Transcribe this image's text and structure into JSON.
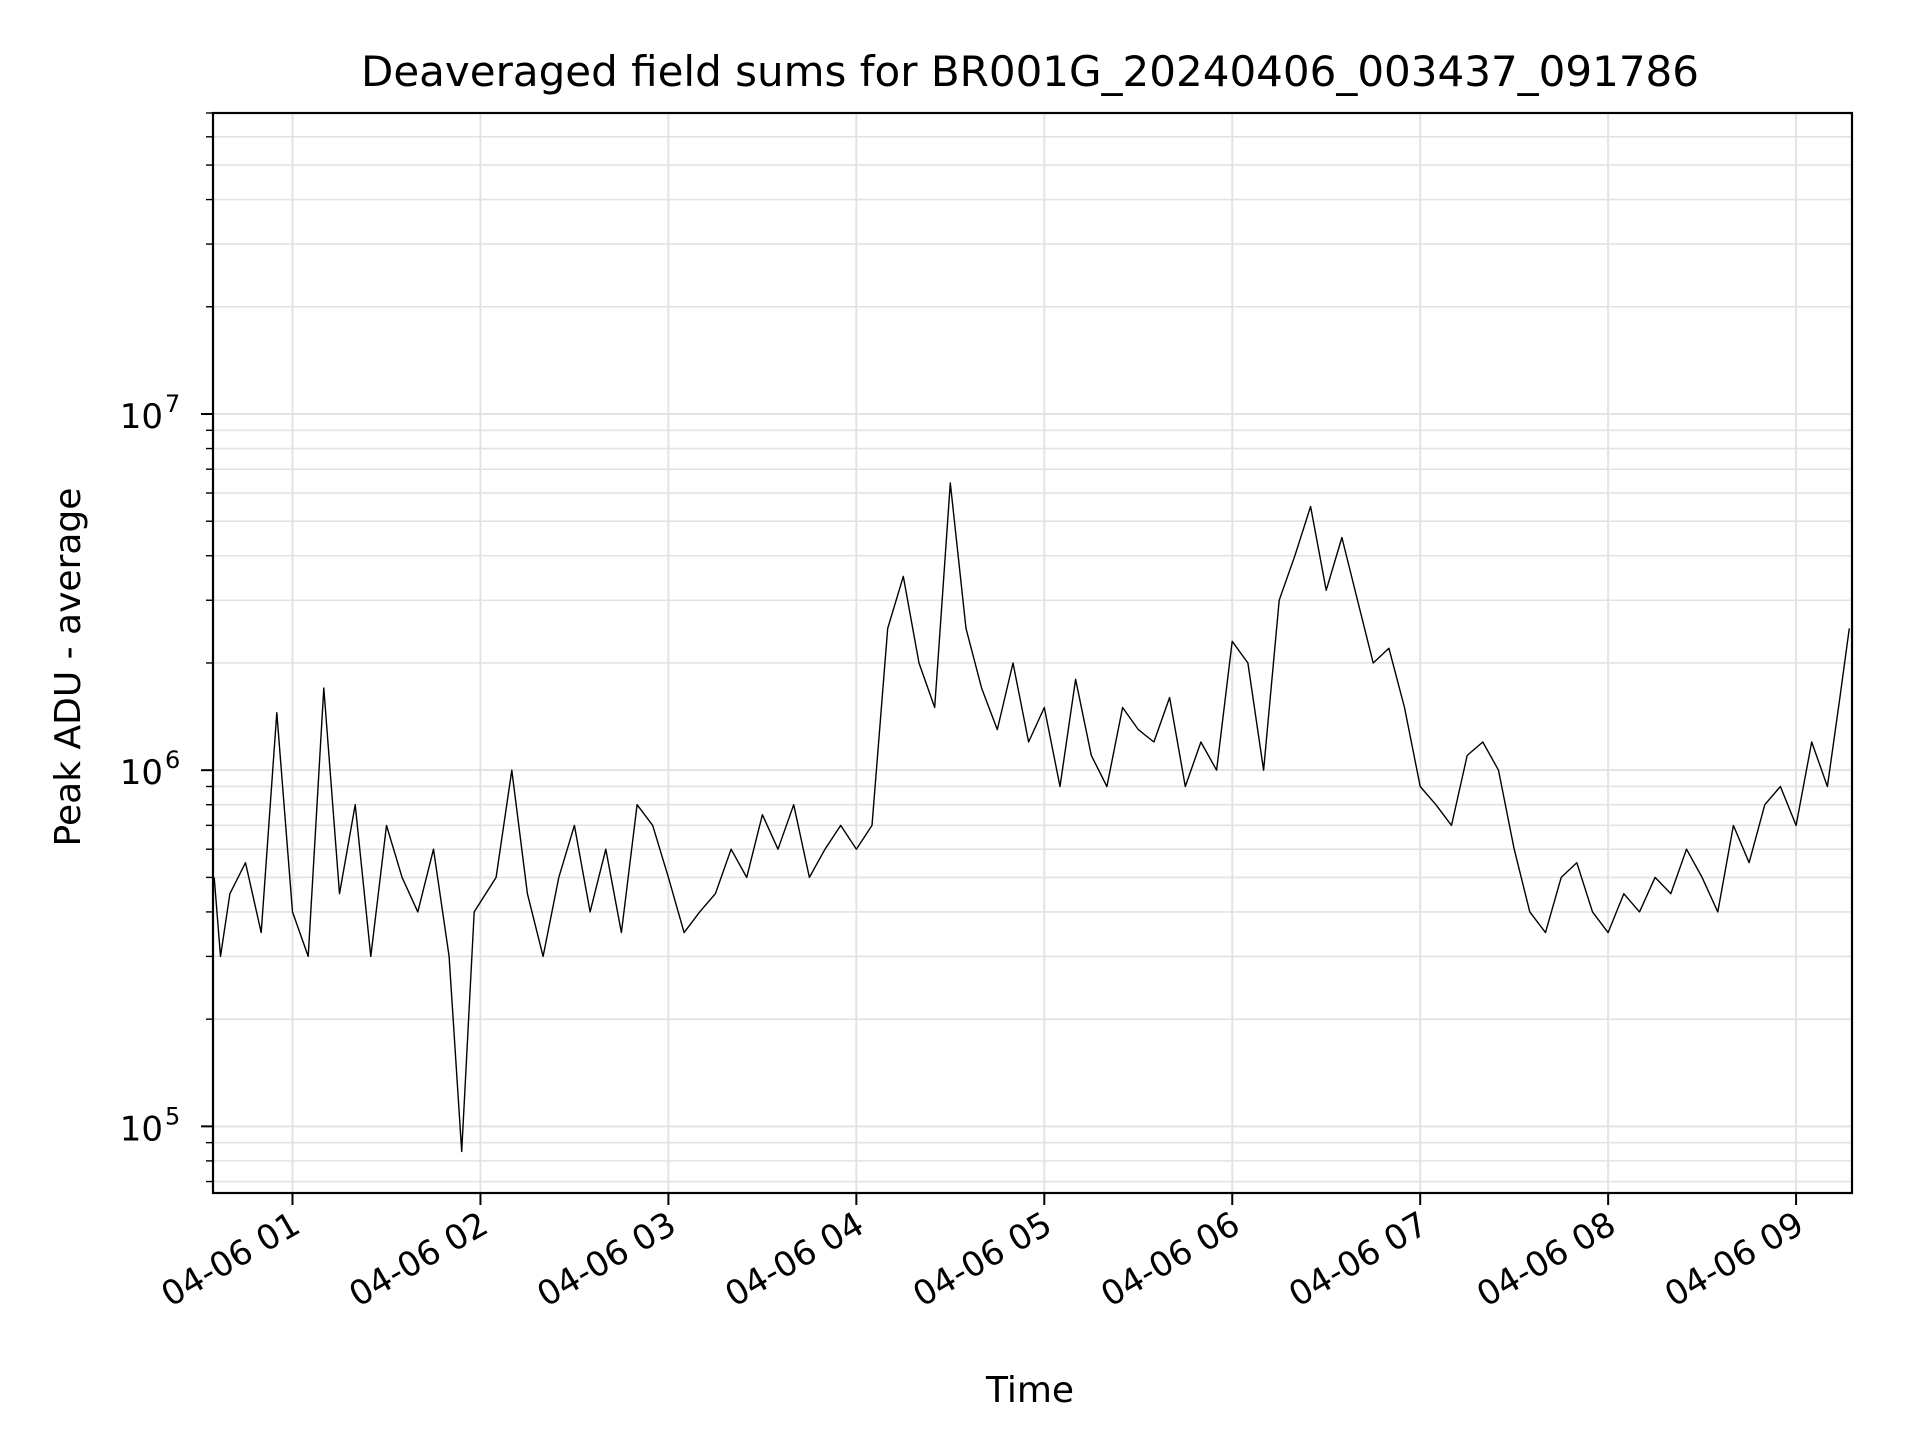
{
  "chart_data": {
    "type": "line",
    "title": "Deaveraged field sums for BR001G_20240406_003437_091786",
    "xlabel": "Time",
    "ylabel": "Peak ADU - average",
    "yscale": "log",
    "ylim": [
      65000,
      70000000
    ],
    "xlim": [
      "04-06 00:34:37",
      "04-06 09:17:51"
    ],
    "grid": true,
    "line_color": "#000000",
    "grid_color": "#e3e3e3",
    "x_ticks": [
      {
        "label": "04-06 01",
        "value": "04-06 01:00"
      },
      {
        "label": "04-06 02",
        "value": "04-06 02:00"
      },
      {
        "label": "04-06 03",
        "value": "04-06 03:00"
      },
      {
        "label": "04-06 04",
        "value": "04-06 04:00"
      },
      {
        "label": "04-06 05",
        "value": "04-06 05:00"
      },
      {
        "label": "04-06 06",
        "value": "04-06 06:00"
      },
      {
        "label": "04-06 07",
        "value": "04-06 07:00"
      },
      {
        "label": "04-06 08",
        "value": "04-06 08:00"
      },
      {
        "label": "04-06 09",
        "value": "04-06 09:00"
      }
    ],
    "y_ticks": [
      {
        "base": "10",
        "exp": "5",
        "value": 100000
      },
      {
        "base": "10",
        "exp": "6",
        "value": 1000000
      },
      {
        "base": "10",
        "exp": "7",
        "value": 10000000
      }
    ],
    "series": [
      {
        "x": [
          "04-06 00:35",
          "04-06 00:37",
          "04-06 00:40",
          "04-06 00:45",
          "04-06 00:50",
          "04-06 00:55",
          "04-06 01:00",
          "04-06 01:05",
          "04-06 01:10",
          "04-06 01:15",
          "04-06 01:20",
          "04-06 01:25",
          "04-06 01:30",
          "04-06 01:35",
          "04-06 01:40",
          "04-06 01:45",
          "04-06 01:50",
          "04-06 01:54",
          "04-06 01:58",
          "04-06 02:05",
          "04-06 02:10",
          "04-06 02:15",
          "04-06 02:20",
          "04-06 02:25",
          "04-06 02:30",
          "04-06 02:35",
          "04-06 02:40",
          "04-06 02:45",
          "04-06 02:50",
          "04-06 02:55",
          "04-06 03:00",
          "04-06 03:05",
          "04-06 03:10",
          "04-06 03:15",
          "04-06 03:20",
          "04-06 03:25",
          "04-06 03:30",
          "04-06 03:35",
          "04-06 03:40",
          "04-06 03:45",
          "04-06 03:50",
          "04-06 03:55",
          "04-06 04:00",
          "04-06 04:05",
          "04-06 04:10",
          "04-06 04:15",
          "04-06 04:20",
          "04-06 04:25",
          "04-06 04:30",
          "04-06 04:35",
          "04-06 04:40",
          "04-06 04:45",
          "04-06 04:50",
          "04-06 04:55",
          "04-06 05:00",
          "04-06 05:05",
          "04-06 05:10",
          "04-06 05:15",
          "04-06 05:20",
          "04-06 05:25",
          "04-06 05:30",
          "04-06 05:35",
          "04-06 05:40",
          "04-06 05:45",
          "04-06 05:50",
          "04-06 05:55",
          "04-06 06:00",
          "04-06 06:05",
          "04-06 06:10",
          "04-06 06:15",
          "04-06 06:20",
          "04-06 06:25",
          "04-06 06:30",
          "04-06 06:35",
          "04-06 06:40",
          "04-06 06:45",
          "04-06 06:50",
          "04-06 06:55",
          "04-06 07:00",
          "04-06 07:05",
          "04-06 07:10",
          "04-06 07:15",
          "04-06 07:20",
          "04-06 07:25",
          "04-06 07:30",
          "04-06 07:35",
          "04-06 07:40",
          "04-06 07:45",
          "04-06 07:50",
          "04-06 07:55",
          "04-06 08:00",
          "04-06 08:05",
          "04-06 08:10",
          "04-06 08:15",
          "04-06 08:20",
          "04-06 08:25",
          "04-06 08:30",
          "04-06 08:35",
          "04-06 08:40",
          "04-06 08:45",
          "04-06 08:50",
          "04-06 08:55",
          "04-06 09:00",
          "04-06 09:05",
          "04-06 09:10",
          "04-06 09:14",
          "04-06 09:17"
        ],
        "y": [
          500000,
          300000,
          450000,
          550000,
          350000,
          1450000,
          400000,
          300000,
          1700000,
          450000,
          800000,
          300000,
          700000,
          500000,
          400000,
          600000,
          300000,
          85000,
          400000,
          500000,
          1000000,
          450000,
          300000,
          500000,
          700000,
          400000,
          600000,
          350000,
          800000,
          700000,
          500000,
          350000,
          400000,
          450000,
          600000,
          500000,
          750000,
          600000,
          800000,
          500000,
          600000,
          700000,
          600000,
          700000,
          2500000,
          3500000,
          2000000,
          1500000,
          6400000,
          2500000,
          1700000,
          1300000,
          2000000,
          1200000,
          1500000,
          900000,
          1800000,
          1100000,
          900000,
          1500000,
          1300000,
          1200000,
          1600000,
          900000,
          1200000,
          1000000,
          2300000,
          2000000,
          1000000,
          3000000,
          4000000,
          5500000,
          3200000,
          4500000,
          3000000,
          2000000,
          2200000,
          1500000,
          900000,
          800000,
          700000,
          1100000,
          1200000,
          1000000,
          600000,
          400000,
          350000,
          500000,
          550000,
          400000,
          350000,
          450000,
          400000,
          500000,
          450000,
          600000,
          500000,
          400000,
          700000,
          550000,
          800000,
          900000,
          700000,
          1200000,
          900000,
          1600000,
          2500000
        ]
      }
    ]
  }
}
